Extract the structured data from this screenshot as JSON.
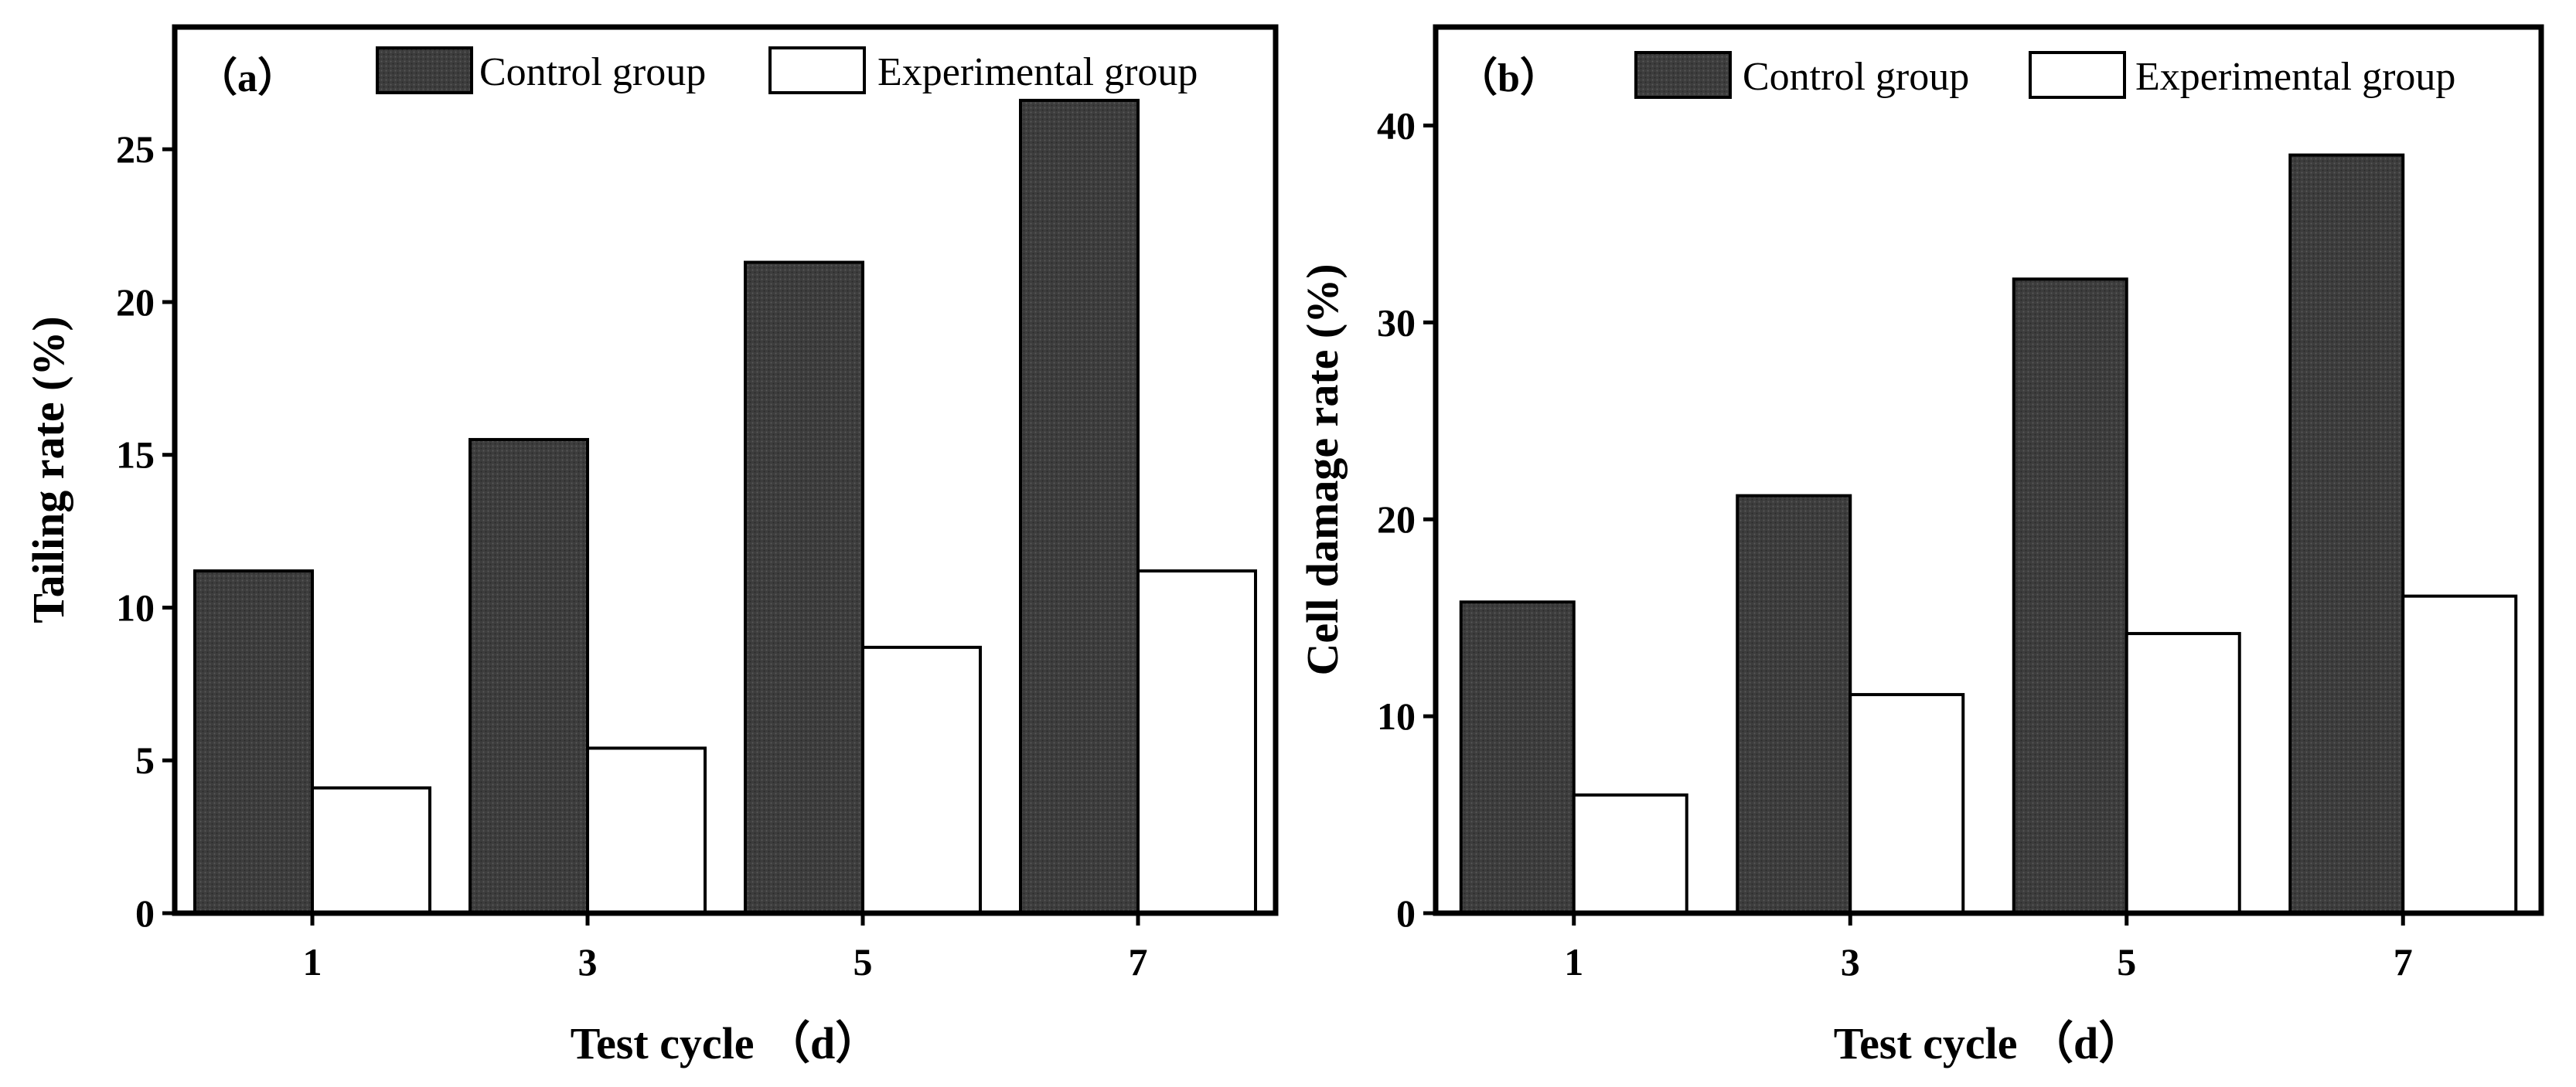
{
  "chart_data": [
    {
      "type": "bar",
      "panel_label": "（a）",
      "categories": [
        "1",
        "3",
        "5",
        "7"
      ],
      "series": [
        {
          "name": "Control group",
          "values": [
            11.2,
            15.5,
            21.3,
            26.6
          ]
        },
        {
          "name": "Experimental group",
          "values": [
            4.1,
            5.4,
            8.7,
            11.2
          ]
        }
      ],
      "xlabel": "Test cycle （d）",
      "ylabel": "Tailing rate (%)",
      "ylim": [
        0,
        29
      ],
      "yticks": [
        0,
        5,
        10,
        15,
        20,
        25
      ],
      "grid": false,
      "legend_position": "top"
    },
    {
      "type": "bar",
      "panel_label": "（b）",
      "categories": [
        "1",
        "3",
        "5",
        "7"
      ],
      "series": [
        {
          "name": "Control group",
          "values": [
            15.8,
            21.2,
            32.2,
            38.5
          ]
        },
        {
          "name": "Experimental group",
          "values": [
            6.0,
            11.1,
            14.2,
            16.1
          ]
        }
      ],
      "xlabel": "Test cycle （d）",
      "ylabel": "Cell damage rate (%)",
      "ylim": [
        0,
        45
      ],
      "yticks": [
        0,
        10,
        20,
        30,
        40
      ],
      "grid": false,
      "legend_position": "top"
    }
  ],
  "colors": {
    "control_fill": "#3d3d3d",
    "experimental_fill": "#ffffff",
    "stroke": "#000000"
  }
}
